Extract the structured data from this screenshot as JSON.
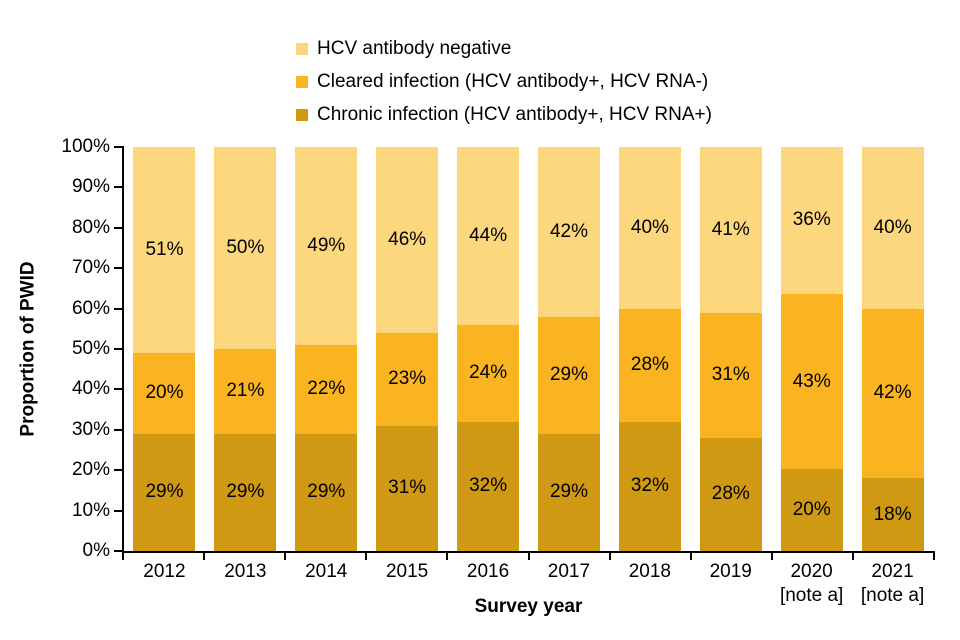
{
  "chart_data": {
    "type": "bar",
    "subtype": "stacked-100",
    "title": "",
    "xlabel": "Survey year",
    "ylabel": "Proportion of PWID",
    "categories": [
      "2012",
      "2013",
      "2014",
      "2015",
      "2016",
      "2017",
      "2018",
      "2019",
      "2020",
      "2021"
    ],
    "category_notes": [
      "",
      "",
      "",
      "",
      "",
      "",
      "",
      "",
      "[note a]",
      "[note a]"
    ],
    "series": [
      {
        "name": "Chronic infection (HCV antibody+, HCV RNA+)",
        "color": "#CF9913",
        "values": [
          29,
          29,
          29,
          31,
          32,
          29,
          32,
          28,
          20,
          18
        ]
      },
      {
        "name": "Cleared infection (HCV antibody+, HCV RNA-)",
        "color": "#FBB421",
        "values": [
          20,
          21,
          22,
          23,
          24,
          29,
          28,
          31,
          43,
          42
        ]
      },
      {
        "name": "HCV antibody negative",
        "color": "#FDD77E",
        "values": [
          51,
          50,
          49,
          46,
          44,
          42,
          40,
          41,
          36,
          40
        ]
      }
    ],
    "value_suffix": "%",
    "data_labels": true,
    "y_ticks": [
      "0%",
      "10%",
      "20%",
      "30%",
      "40%",
      "50%",
      "60%",
      "70%",
      "80%",
      "90%",
      "100%"
    ],
    "ylim": [
      0,
      100
    ],
    "grid": false,
    "legend_position": "top",
    "legend_order": "top-of-stack-first",
    "colors": {
      "axis": "#000000",
      "text": "#000000",
      "background": "#FFFFFF"
    }
  }
}
